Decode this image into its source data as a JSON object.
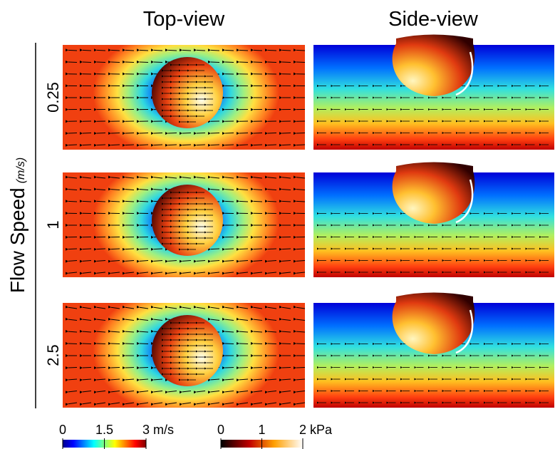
{
  "columns": [
    "Top-view",
    "Side-view"
  ],
  "axis_label": "Flow Speed",
  "axis_unit": "(m/s)",
  "rows": [
    {
      "speed": 0.25
    },
    {
      "speed": 1
    },
    {
      "speed": 2.5
    }
  ],
  "colorbars": [
    {
      "lim": [
        0,
        3
      ],
      "ticks": [
        0,
        1.5,
        3
      ],
      "unit": "m/s"
    },
    {
      "lim": [
        0,
        2
      ],
      "ticks": [
        0,
        1,
        2
      ],
      "unit": "kPa"
    }
  ]
}
